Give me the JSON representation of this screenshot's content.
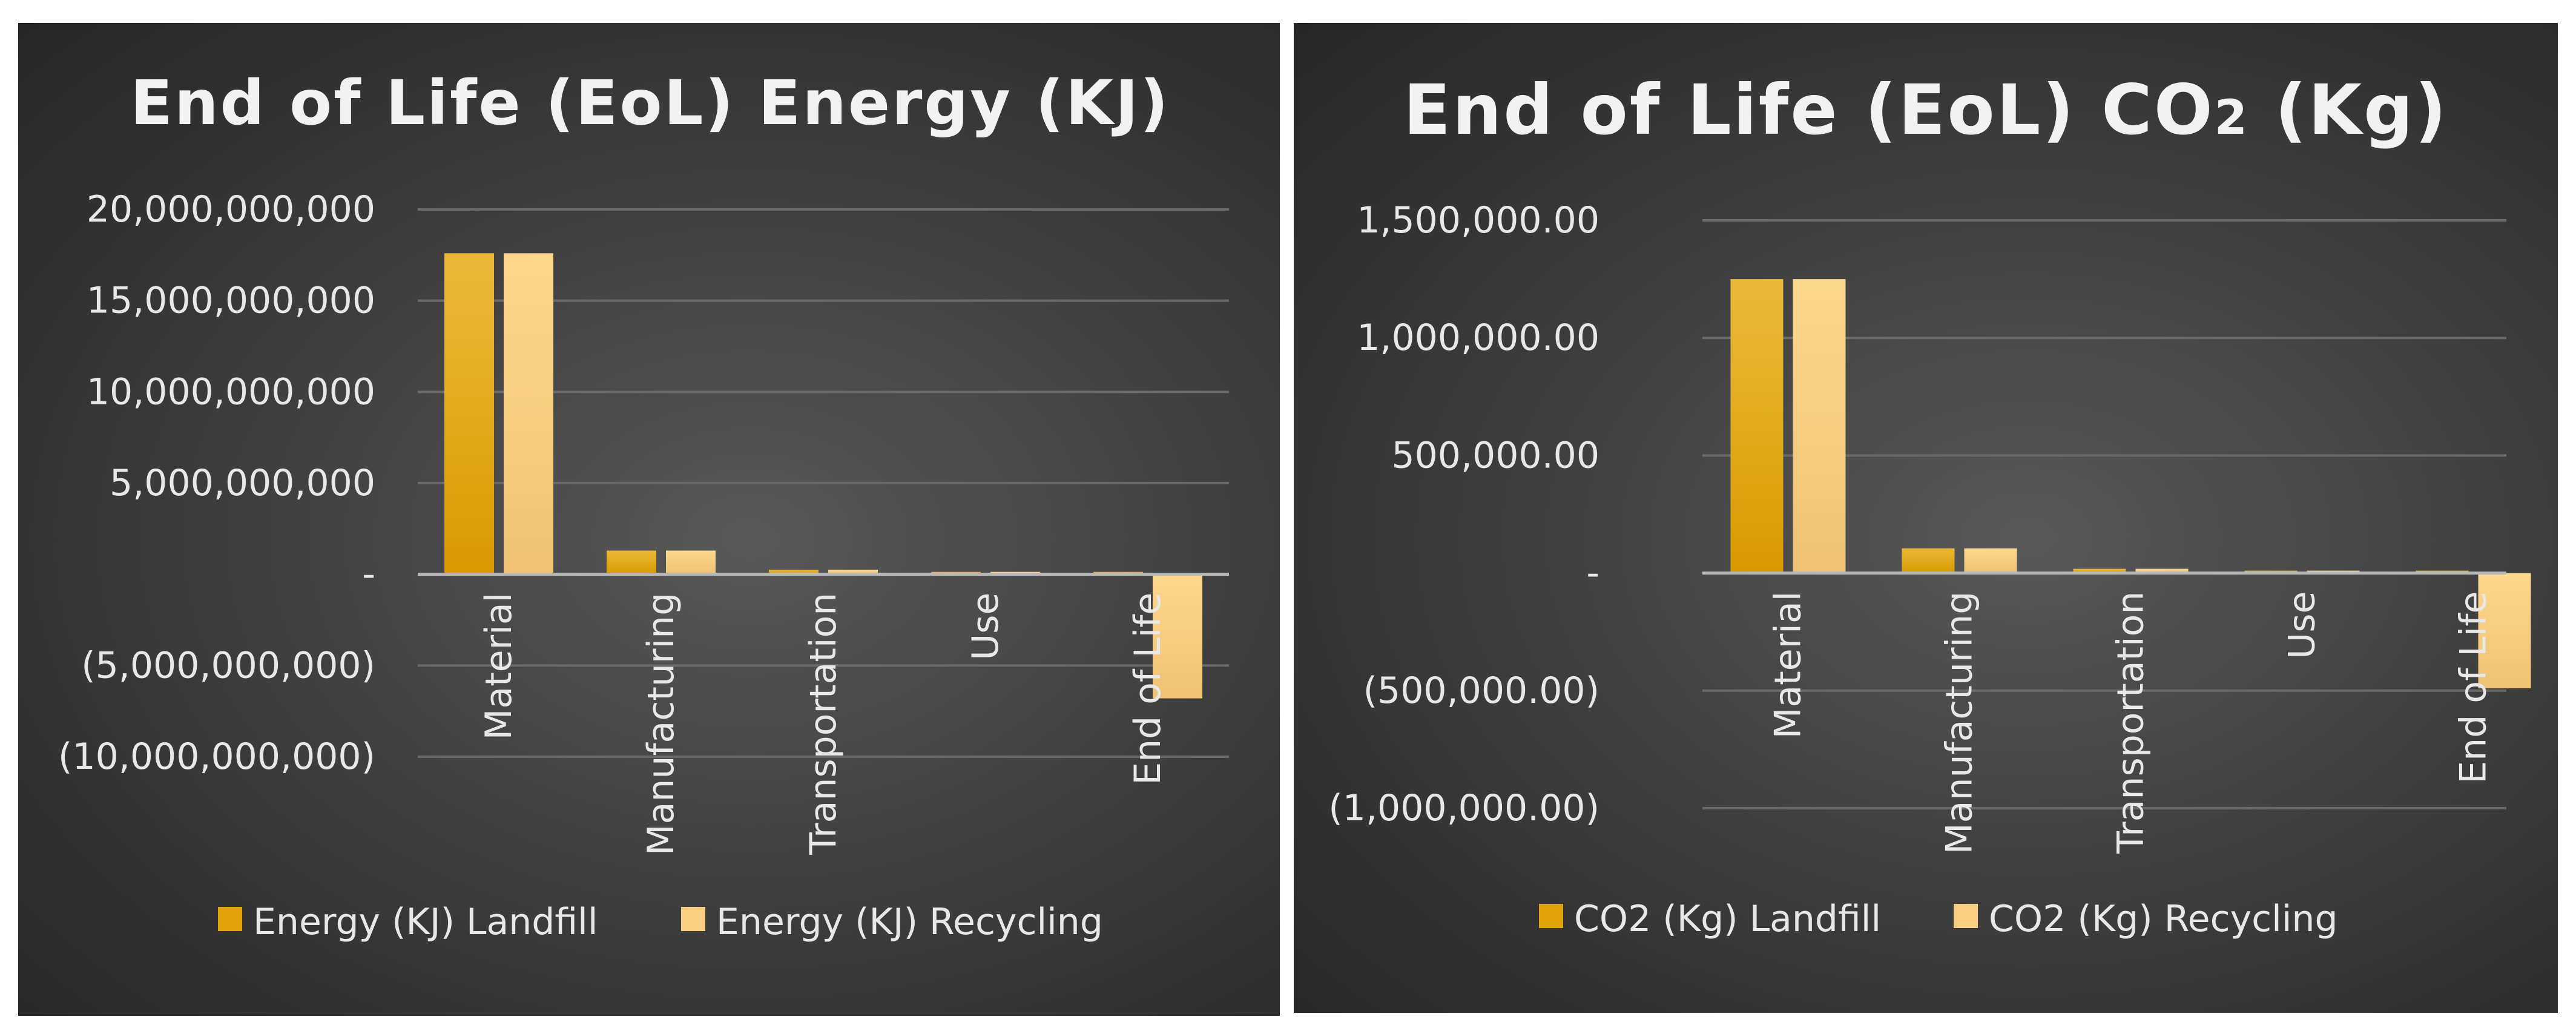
{
  "chart_data": [
    {
      "type": "bar",
      "title": "End of Life (EoL) Energy (KJ)",
      "categories": [
        "Material",
        "Manufacturing",
        "Transportation",
        "Use",
        "End of Life"
      ],
      "series": [
        {
          "name": "Energy (KJ) Landfill",
          "values": [
            17600000000,
            1300000000,
            250000000,
            50000000,
            100000000
          ],
          "color": "#e0a40a"
        },
        {
          "name": "Energy (KJ) Recycling",
          "values": [
            17600000000,
            1300000000,
            250000000,
            50000000,
            -6800000000
          ],
          "color": "#f8cf80"
        }
      ],
      "ylim": [
        -10000000000,
        20000000000
      ],
      "yticks": [
        20000000000,
        15000000000,
        10000000000,
        5000000000,
        0,
        -5000000000,
        -10000000000
      ],
      "ytick_labels": [
        "20,000,000,000",
        "15,000,000,000",
        "10,000,000,000",
        "5,000,000,000",
        "-",
        "(5,000,000,000)",
        "(10,000,000,000)"
      ],
      "xlabel": "",
      "ylabel": "",
      "legend": "bottom"
    },
    {
      "type": "bar",
      "title": "End of Life (EoL) CO",
      "title_subscript": "2",
      "title_suffix": " (Kg)",
      "categories": [
        "Material",
        "Manufacturing",
        "Transportation",
        "Use",
        "End of Life"
      ],
      "series": [
        {
          "name": "CO2 (Kg) Landfill",
          "values": [
            1250000,
            105000,
            18000,
            3000,
            6000
          ],
          "color": "#e0a40a"
        },
        {
          "name": "CO2 (Kg) Recycling",
          "values": [
            1250000,
            105000,
            18000,
            3000,
            -490000
          ],
          "color": "#f8cf80"
        }
      ],
      "ylim": [
        -1000000,
        1500000
      ],
      "yticks": [
        1500000,
        1000000,
        500000,
        0,
        -500000,
        -1000000
      ],
      "ytick_labels": [
        "1,500,000.00",
        "1,000,000.00",
        "500,000.00",
        "-",
        "(500,000.00)",
        "(1,000,000.00)"
      ],
      "xlabel": "",
      "ylabel": "",
      "legend": "bottom"
    }
  ]
}
